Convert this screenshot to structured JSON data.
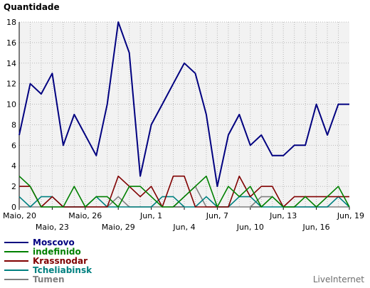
{
  "chart_data": {
    "type": "line",
    "ylabel": "Quantidade",
    "ylim": [
      0,
      18
    ],
    "y_ticks": [
      "0",
      "2",
      "4",
      "6",
      "8",
      "10",
      "12",
      "14",
      "16",
      "18"
    ],
    "grid": true,
    "x": [
      "Maio, 20",
      "Maio, 21",
      "Maio, 22",
      "Maio, 23",
      "Maio, 24",
      "Maio, 25",
      "Maio, 26",
      "Maio, 27",
      "Maio, 28",
      "Maio, 29",
      "Maio, 30",
      "Maio, 31",
      "Jun, 1",
      "Jun, 2",
      "Jun, 3",
      "Jun, 4",
      "Jun, 5",
      "Jun, 6",
      "Jun, 7",
      "Jun, 8",
      "Jun, 9",
      "Jun, 10",
      "Jun, 11",
      "Jun, 12",
      "Jun, 13",
      "Jun, 14",
      "Jun, 15",
      "Jun, 16",
      "Jun, 17",
      "Jun, 18",
      "Jun, 19"
    ],
    "x_tick_labels": [
      {
        "index": 0,
        "label": "Maio, 20",
        "row": 0
      },
      {
        "index": 3,
        "label": "Maio, 23",
        "row": 1
      },
      {
        "index": 6,
        "label": "Maio, 26",
        "row": 0
      },
      {
        "index": 9,
        "label": "Maio, 29",
        "row": 1
      },
      {
        "index": 12,
        "label": "Jun, 1",
        "row": 0
      },
      {
        "index": 15,
        "label": "Jun, 4",
        "row": 1
      },
      {
        "index": 18,
        "label": "Jun, 7",
        "row": 0
      },
      {
        "index": 21,
        "label": "Jun, 10",
        "row": 1
      },
      {
        "index": 24,
        "label": "Jun, 13",
        "row": 0
      },
      {
        "index": 27,
        "label": "Jun, 16",
        "row": 1
      },
      {
        "index": 30,
        "label": "Jun, 19",
        "row": 0
      }
    ],
    "series": [
      {
        "name": "Moscovo",
        "color": "#000080",
        "values": [
          7,
          12,
          11,
          13,
          6,
          9,
          7,
          5,
          10,
          18,
          15,
          3,
          8,
          10,
          12,
          14,
          13,
          9,
          2,
          7,
          9,
          6,
          7,
          5,
          5,
          6,
          6,
          10,
          7,
          10,
          10
        ]
      },
      {
        "name": "indefinido",
        "color": "#008000",
        "values": [
          3,
          2,
          0,
          0,
          0,
          2,
          0,
          1,
          1,
          0,
          2,
          2,
          1,
          0,
          0,
          1,
          2,
          3,
          0,
          2,
          1,
          2,
          0,
          1,
          0,
          0,
          1,
          0,
          1,
          2,
          0
        ]
      },
      {
        "name": "Krassnodar",
        "color": "#800000",
        "values": [
          2,
          2,
          0,
          1,
          0,
          0,
          0,
          0,
          0,
          3,
          2,
          1,
          2,
          0,
          3,
          3,
          0,
          0,
          0,
          0,
          3,
          1,
          2,
          2,
          0,
          1,
          1,
          1,
          1,
          1,
          1
        ]
      },
      {
        "name": "Tcheliabinsk",
        "color": "#008080",
        "values": [
          1,
          0,
          1,
          1,
          0,
          0,
          0,
          1,
          0,
          0,
          0,
          0,
          0,
          1,
          1,
          0,
          0,
          1,
          0,
          0,
          1,
          1,
          0,
          0,
          0,
          0,
          0,
          0,
          0,
          1,
          0
        ]
      },
      {
        "name": "Tumen",
        "color": "#808080",
        "values": [
          0,
          0,
          0,
          0,
          0,
          0,
          0,
          0,
          0,
          1,
          0,
          0,
          0,
          0,
          0,
          1,
          2,
          0,
          0,
          0,
          0,
          0,
          1,
          1,
          0,
          0,
          0,
          0,
          0,
          0,
          0
        ]
      }
    ]
  },
  "credit": "LiveInternet"
}
